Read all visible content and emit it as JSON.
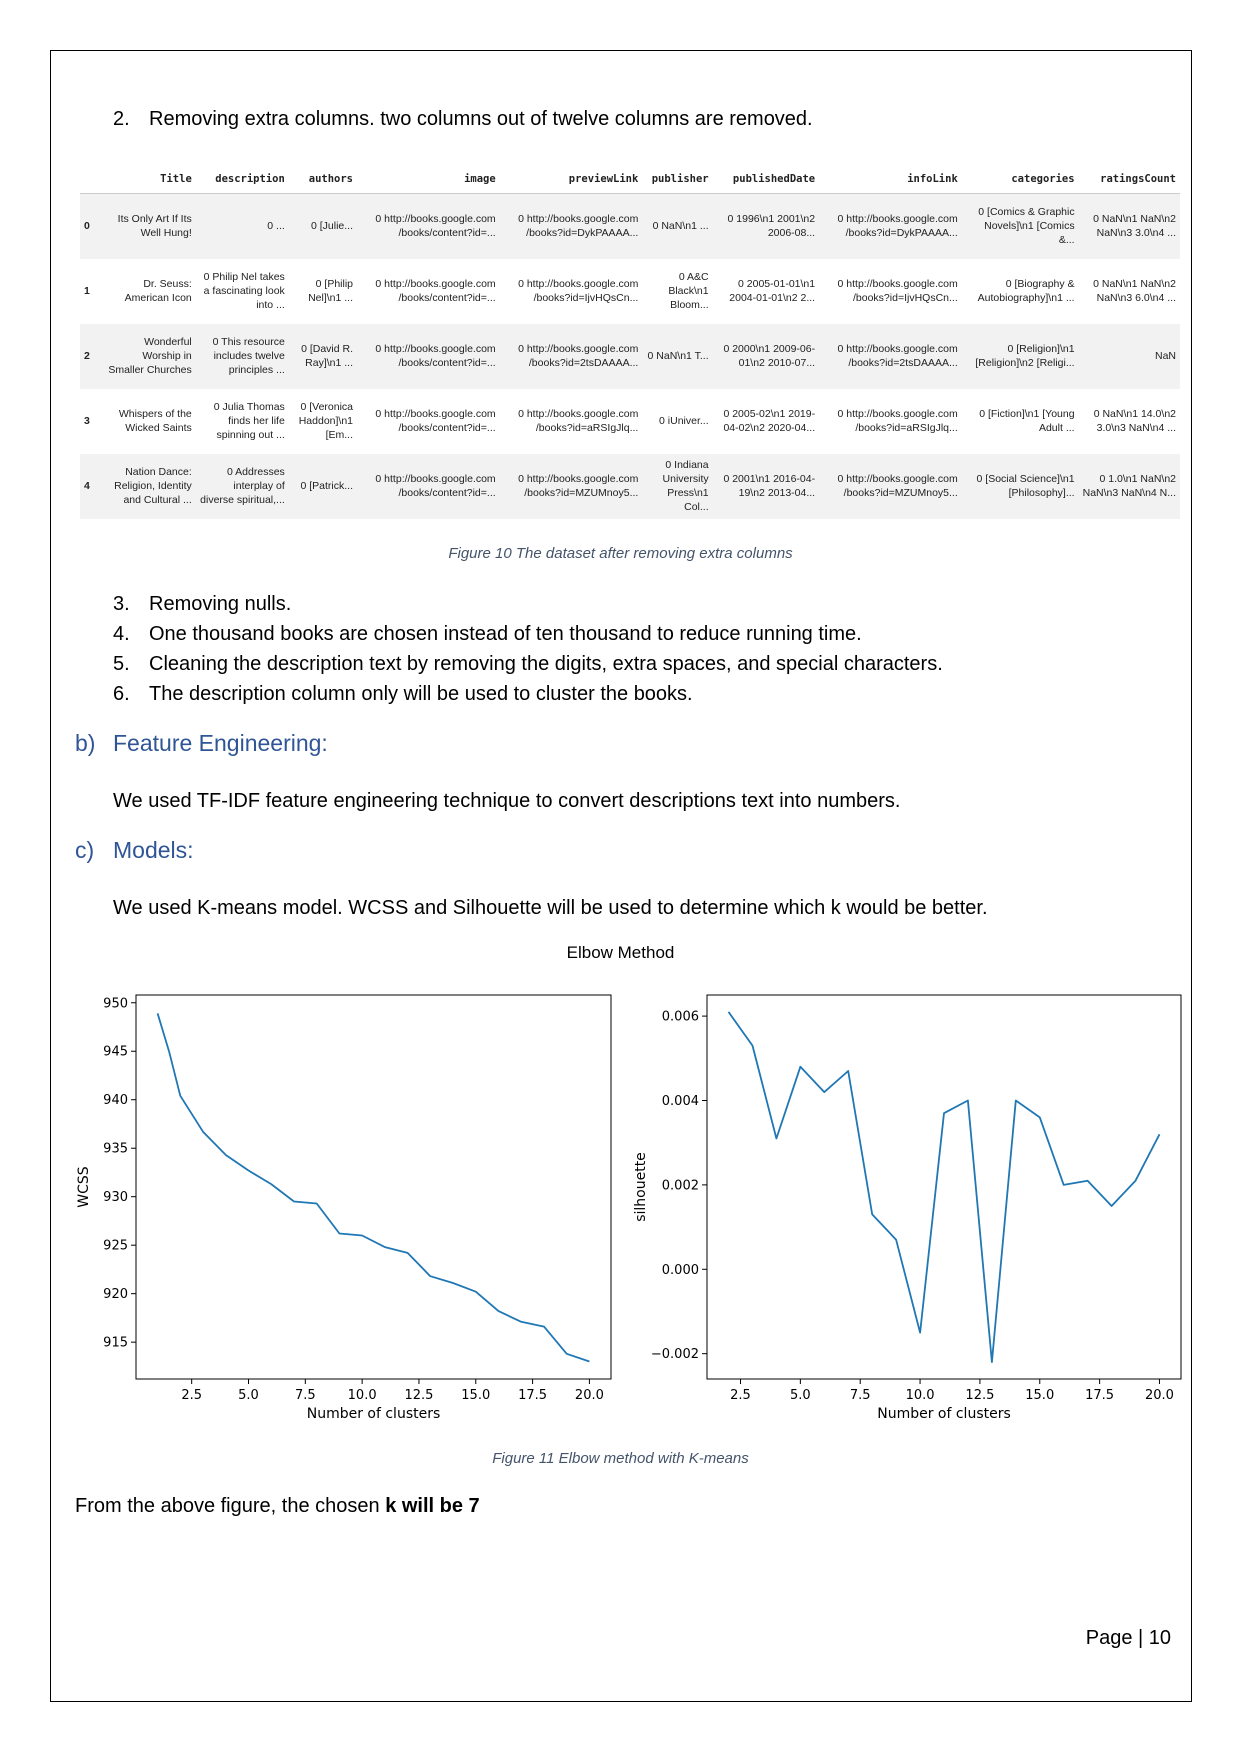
{
  "list_items": {
    "item2": {
      "num": "2.",
      "text": "Removing extra columns. two columns out of twelve columns are removed."
    },
    "item3": {
      "num": "3.",
      "text": "Removing nulls."
    },
    "item4": {
      "num": "4.",
      "text": "One thousand books are chosen instead of ten thousand to reduce running time."
    },
    "item5": {
      "num": "5.",
      "text": "Cleaning the description text by removing the digits, extra spaces, and special characters."
    },
    "item6": {
      "num": "6.",
      "text": "The description column only will be used to cluster the books."
    }
  },
  "table": {
    "columns": [
      "",
      "Title",
      "description",
      "authors",
      "image",
      "previewLink",
      "publisher",
      "publishedDate",
      "infoLink",
      "categories",
      "ratingsCount"
    ],
    "rows": [
      [
        "0",
        "Its Only Art If Its Well Hung!",
        "0 ...",
        "0 [Julie...",
        "0 http://books.google.com /books/content?id=...",
        "0 http://books.google.com /books?id=DykPAAAA...",
        "0 NaN\\n1 ...",
        "0 1996\\n1 2001\\n2 2006-08...",
        "0 http://books.google.com /books?id=DykPAAAA...",
        "0 [Comics & Graphic Novels]\\n1 [Comics &...",
        "0 NaN\\n1 NaN\\n2 NaN\\n3 3.0\\n4 ..."
      ],
      [
        "1",
        "Dr. Seuss: American Icon",
        "0 Philip Nel takes a fascinating look into ...",
        "0 [Philip Nel]\\n1 ...",
        "0 http://books.google.com /books/content?id=...",
        "0 http://books.google.com /books?id=IjvHQsCn...",
        "0 A&C Black\\n1 Bloom...",
        "0 2005-01-01\\n1 2004-01-01\\n2 2...",
        "0 http://books.google.com /books?id=IjvHQsCn...",
        "0 [Biography & Autobiography]\\n1 ...",
        "0 NaN\\n1 NaN\\n2 NaN\\n3 6.0\\n4 ..."
      ],
      [
        "2",
        "Wonderful Worship in Smaller Churches",
        "0 This resource includes twelve principles ...",
        "0 [David R. Ray]\\n1 ...",
        "0 http://books.google.com /books/content?id=...",
        "0 http://books.google.com /books?id=2tsDAAAA...",
        "0 NaN\\n1 T...",
        "0 2000\\n1 2009-06-01\\n2 2010-07...",
        "0 http://books.google.com /books?id=2tsDAAAA...",
        "0 [Religion]\\n1 [Religion]\\n2 [Religi...",
        "NaN"
      ],
      [
        "3",
        "Whispers of the Wicked Saints",
        "0 Julia Thomas finds her life spinning out ...",
        "0 [Veronica Haddon]\\n1 [Em...",
        "0 http://books.google.com /books/content?id=...",
        "0 http://books.google.com /books?id=aRSIgJlq...",
        "0 iUniver...",
        "0 2005-02\\n1 2019-04-02\\n2 2020-04...",
        "0 http://books.google.com /books?id=aRSIgJlq...",
        "0 [Fiction]\\n1 [Young Adult ...",
        "0 NaN\\n1 14.0\\n2 3.0\\n3 NaN\\n4 ..."
      ],
      [
        "4",
        "Nation Dance: Religion, Identity and Cultural ...",
        "0 Addresses interplay of diverse spiritual,...",
        "0 [Patrick...",
        "0 http://books.google.com /books/content?id=...",
        "0 http://books.google.com /books?id=MZUMnoy5...",
        "0 Indiana University Press\\n1 Col...",
        "0 2001\\n1 2016-04-19\\n2 2013-04...",
        "0 http://books.google.com /books?id=MZUMnoy5...",
        "0 [Social Science]\\n1 [Philosophy]...",
        "0 1.0\\n1 NaN\\n2 NaN\\n3 NaN\\n4 N..."
      ]
    ]
  },
  "captions": {
    "fig10": "Figure 10 The dataset after removing extra columns",
    "fig11": "Figure 11 Elbow method with K-means"
  },
  "headings": {
    "b": {
      "letter": "b)",
      "text": "Feature Engineering:"
    },
    "c": {
      "letter": "c)",
      "text": "Models:"
    }
  },
  "paragraphs": {
    "tfidf": "We used TF-IDF feature engineering technique to convert descriptions text into numbers.",
    "kmeans": "We used K-means model. WCSS and Silhouette will be used to determine which k would be better.",
    "conclusion_prefix": "From the above figure, the chosen ",
    "conclusion_bold": "k will be 7"
  },
  "chart_title": "Elbow Method",
  "chart_data": [
    {
      "type": "line",
      "title": "Elbow Method",
      "xlabel": "Number of clusters",
      "ylabel": "WCSS",
      "xlim": [
        0.05,
        20.95
      ],
      "ylim": [
        911.2,
        950.8
      ],
      "xticks": [
        2.5,
        5.0,
        7.5,
        10.0,
        12.5,
        15.0,
        17.5,
        20.0
      ],
      "yticks": [
        915,
        920,
        925,
        930,
        935,
        940,
        945,
        950
      ],
      "x": [
        1,
        1.5,
        2,
        3,
        4,
        5,
        6,
        7,
        8,
        9,
        10,
        11,
        12,
        13,
        14,
        15,
        16,
        17,
        18,
        19,
        20
      ],
      "y": [
        948.9,
        945.0,
        940.4,
        936.7,
        934.3,
        932.7,
        931.3,
        929.5,
        929.3,
        926.2,
        926.0,
        924.8,
        924.2,
        921.8,
        921.1,
        920.2,
        918.2,
        917.1,
        916.6,
        913.8,
        913.0
      ],
      "grid": false
    },
    {
      "type": "line",
      "xlabel": "Number of clusters",
      "ylabel": "silhouette",
      "xlim": [
        1.1,
        20.9
      ],
      "ylim": [
        -0.0026,
        0.0065
      ],
      "xticks": [
        2.5,
        5.0,
        7.5,
        10.0,
        12.5,
        15.0,
        17.5,
        20.0
      ],
      "yticks": [
        -0.002,
        0.0,
        0.002,
        0.004,
        0.006
      ],
      "ytick_labels": [
        "−0.002",
        "0.000",
        "0.002",
        "0.004",
        "0.006"
      ],
      "x": [
        2,
        3,
        4,
        5,
        6,
        7,
        8,
        9,
        10,
        11,
        12,
        13,
        14,
        15,
        16,
        17,
        18,
        19,
        20
      ],
      "y": [
        0.0061,
        0.0053,
        0.0031,
        0.0048,
        0.0042,
        0.0047,
        0.0013,
        0.0007,
        -0.0015,
        0.0037,
        0.004,
        -0.0022,
        0.004,
        0.0036,
        0.002,
        0.0021,
        0.0015,
        0.0021,
        0.0032
      ],
      "grid": false
    }
  ],
  "page_number": "Page | 10",
  "colors": {
    "line": "#1f77b4",
    "heading": "#2f5597",
    "caption": "#44546a"
  }
}
